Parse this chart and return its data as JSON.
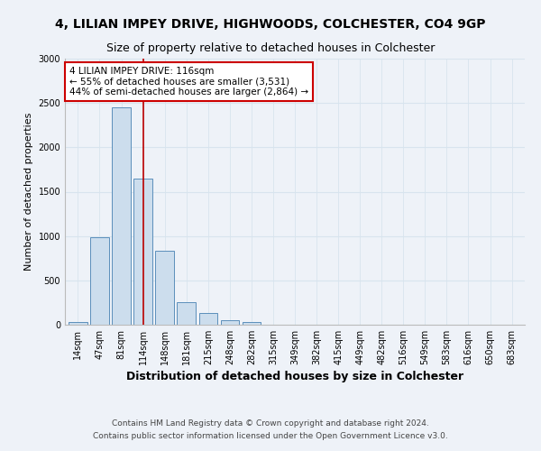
{
  "title": "4, LILIAN IMPEY DRIVE, HIGHWOODS, COLCHESTER, CO4 9GP",
  "subtitle": "Size of property relative to detached houses in Colchester",
  "xlabel": "Distribution of detached houses by size in Colchester",
  "ylabel": "Number of detached properties",
  "bar_labels": [
    "14sqm",
    "47sqm",
    "81sqm",
    "114sqm",
    "148sqm",
    "181sqm",
    "215sqm",
    "248sqm",
    "282sqm",
    "315sqm",
    "349sqm",
    "382sqm",
    "415sqm",
    "449sqm",
    "482sqm",
    "516sqm",
    "549sqm",
    "583sqm",
    "616sqm",
    "650sqm",
    "683sqm"
  ],
  "bar_values": [
    30,
    990,
    2450,
    1650,
    830,
    250,
    130,
    50,
    30,
    5,
    5,
    2,
    2,
    1,
    1,
    0,
    0,
    0,
    0,
    0,
    0
  ],
  "bar_color": "#ccdded",
  "bar_edge_color": "#5b8fbb",
  "grid_color": "#d8e4ee",
  "background_color": "#eef2f8",
  "marker_index": 3,
  "marker_color": "#bb0000",
  "annotation_text": "4 LILIAN IMPEY DRIVE: 116sqm\n← 55% of detached houses are smaller (3,531)\n44% of semi-detached houses are larger (2,864) →",
  "annotation_box_color": "#cc0000",
  "ylim": [
    0,
    3000
  ],
  "yticks": [
    0,
    500,
    1000,
    1500,
    2000,
    2500,
    3000
  ],
  "footer_text": "Contains HM Land Registry data © Crown copyright and database right 2024.\nContains public sector information licensed under the Open Government Licence v3.0.",
  "title_fontsize": 10,
  "subtitle_fontsize": 9,
  "xlabel_fontsize": 9,
  "ylabel_fontsize": 8,
  "tick_fontsize": 7,
  "footer_fontsize": 6.5,
  "annot_fontsize": 7.5
}
